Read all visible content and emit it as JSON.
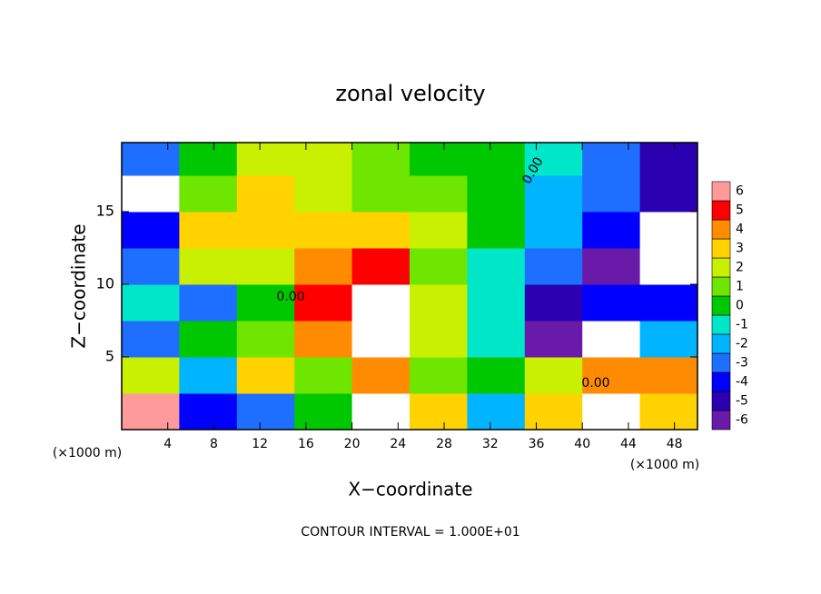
{
  "chart_data": {
    "type": "contour",
    "title": "zonal velocity",
    "x_label": "X−coordinate",
    "y_label": "Z−coordinate",
    "x_unit": "(×1000 m)",
    "y_unit": "(×1000 m)",
    "footer": "CONTOUR INTERVAL = 1.000E+01",
    "contour_labels": [
      "0.00",
      "0.00",
      "0.00"
    ],
    "xlim": [
      0,
      50
    ],
    "ylim": [
      0,
      19.75
    ],
    "xticks": [
      4,
      8,
      12,
      16,
      20,
      24,
      28,
      32,
      36,
      40,
      44,
      48
    ],
    "yticks": [
      5,
      10,
      15
    ],
    "x": [
      2.5,
      7.5,
      12.5,
      17.5,
      22.5,
      27.5,
      32.5,
      37.5,
      42.5,
      47.5
    ],
    "z": [
      1.25,
      3.75,
      6.25,
      8.75,
      11.25,
      13.75,
      16.25,
      18.75
    ],
    "values": [
      [
        6,
        -4,
        -3,
        0,
        8,
        3,
        -2,
        3,
        8,
        3
      ],
      [
        2,
        -2,
        3,
        1,
        4,
        1,
        0,
        2,
        4,
        4
      ],
      [
        -3,
        0,
        1,
        4,
        8,
        2,
        -1,
        -6,
        -8,
        -2
      ],
      [
        -1,
        -3,
        0,
        5,
        8,
        2,
        -1,
        -5,
        -4,
        -4
      ],
      [
        -3,
        2,
        2,
        4,
        5,
        1,
        -1,
        -3,
        -6,
        -8
      ],
      [
        -4,
        3,
        3,
        3,
        3,
        2,
        0,
        -2,
        -4,
        -8
      ],
      [
        -8,
        1,
        3,
        2.5,
        1.5,
        1,
        0,
        -2,
        -3,
        -5
      ],
      [
        -3,
        0,
        2,
        2,
        1,
        0.5,
        0,
        -1,
        -3,
        -5
      ]
    ],
    "levels": [
      -6,
      -5,
      -4,
      -3,
      -2,
      -1,
      0,
      1,
      2,
      3,
      4,
      5,
      6
    ],
    "colors": [
      "#6a1aa8",
      "#2a00b0",
      "#0000ff",
      "#1e6eff",
      "#00b4ff",
      "#00e6c8",
      "#00c800",
      "#6ee600",
      "#c8f000",
      "#ffd200",
      "#ff8c00",
      "#ff0000",
      "#ff9a9a"
    ]
  }
}
